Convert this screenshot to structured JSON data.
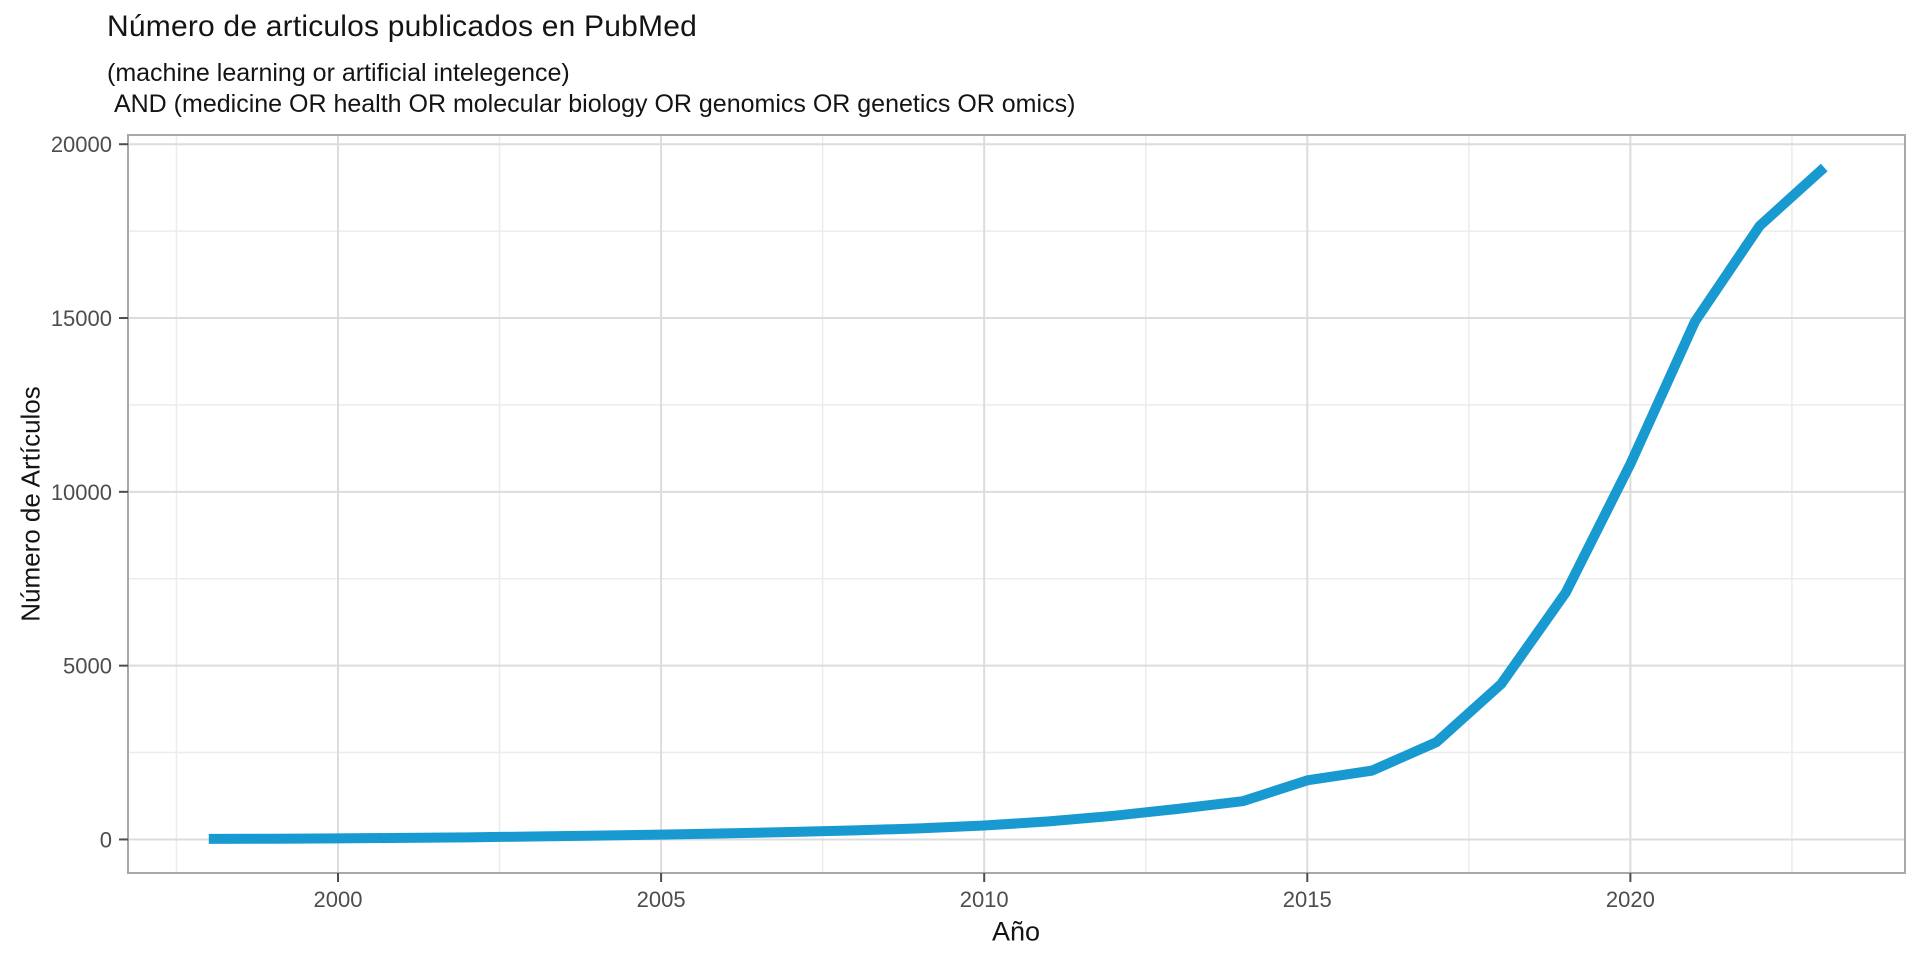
{
  "page": {
    "background": "#ffffff"
  },
  "header": {
    "title": "Número de articulos publicados en PubMed",
    "subtitle": "(machine learning or artificial intelegence)\n AND (medicine OR health OR molecular biology OR genomics OR genetics OR omics)"
  },
  "chart_data": {
    "type": "line",
    "title": "Número de articulos publicados en PubMed",
    "subtitle_line_1": "(machine learning or artificial intelegence)",
    "subtitle_line_2": " AND (medicine OR health OR molecular biology OR genomics OR genetics OR omics)",
    "xlabel": "Año",
    "ylabel": "Número de Artículos",
    "x": [
      1998,
      1999,
      2000,
      2001,
      2002,
      2003,
      2004,
      2005,
      2006,
      2007,
      2008,
      2009,
      2010,
      2011,
      2012,
      2013,
      2014,
      2015,
      2016,
      2017,
      2018,
      2019,
      2020,
      2021,
      2022,
      2023
    ],
    "series": [
      {
        "name": "articulos",
        "values": [
          15,
          20,
          30,
          45,
          60,
          85,
          110,
          140,
          175,
          215,
          260,
          320,
          400,
          520,
          680,
          880,
          1100,
          1700,
          1980,
          2800,
          4470,
          7100,
          10800,
          14900,
          17650,
          19330
        ]
      }
    ],
    "xticks": [
      2000,
      2005,
      2010,
      2015,
      2020
    ],
    "yticks": [
      0,
      5000,
      10000,
      15000,
      20000
    ],
    "xticks_minor": [
      1997.5,
      2002.5,
      2007.5,
      2012.5,
      2017.5,
      2022.5
    ],
    "yticks_minor": [
      2500,
      7500,
      12500,
      17500
    ],
    "xlim": [
      1996.75,
      2024.25
    ],
    "ylim": [
      -965,
      20265
    ],
    "grid": true,
    "legend": false,
    "panel_background": "#ffffff",
    "line_color": "#189AD1",
    "line_width": 10,
    "grid_major_color": "#dcdcdc",
    "grid_minor_color": "#ececec",
    "panel_border_color": "#a8a8a8",
    "tick_mark_color": "#4d4d4d",
    "tick_label_color": "#4d4d4d"
  }
}
